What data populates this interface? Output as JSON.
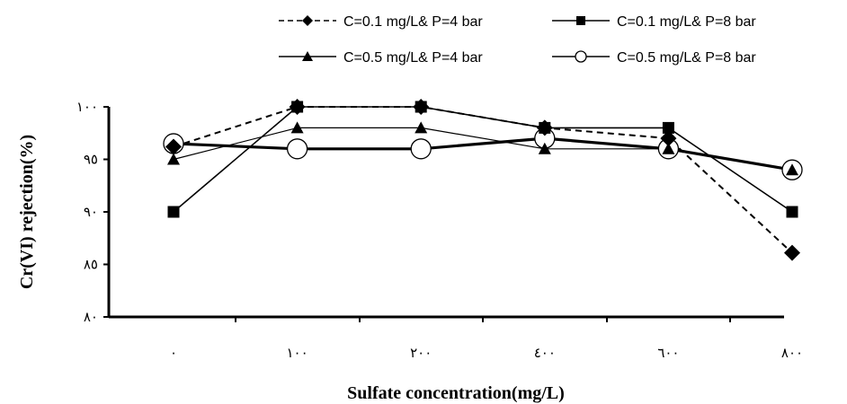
{
  "chart_data": {
    "type": "line",
    "title": "",
    "xlabel": "Sulfate concentration(mg/L)",
    "ylabel": "Cr(VI) rejection(%)",
    "categories": [
      "٠",
      "١٠٠",
      "٢٠٠",
      "٤٠٠",
      "٦٠٠",
      "٨٠٠"
    ],
    "ylim": [
      80,
      100
    ],
    "yticks": [
      80,
      85,
      90,
      95,
      100
    ],
    "ytick_labels": [
      "٨٠",
      "٨٥",
      "٩٠",
      "٩٥",
      "١٠٠"
    ],
    "grid": false,
    "legend_position": "top",
    "series": [
      {
        "name": "C=0.1 mg/L& P=4 bar",
        "values": [
          96.2,
          100,
          100,
          98,
          97,
          86.1
        ],
        "line_style": "dashed",
        "marker": "diamond",
        "color": "#000000"
      },
      {
        "name": "C=0.1 mg/L& P=8 bar",
        "values": [
          90,
          100,
          100,
          98,
          98,
          90
        ],
        "line_style": "solid",
        "marker": "square",
        "color": "#000000"
      },
      {
        "name": "C=0.5 mg/L& P=4 bar",
        "values": [
          95,
          98,
          98,
          96,
          96,
          94
        ],
        "line_style": "solid",
        "marker": "triangle",
        "color": "#000000"
      },
      {
        "name": "C=0.5 mg/L& P=8 bar",
        "values": [
          96.5,
          96,
          96,
          97,
          96,
          94
        ],
        "line_style": "solid",
        "marker": "circle-open",
        "color": "#000000"
      }
    ]
  }
}
